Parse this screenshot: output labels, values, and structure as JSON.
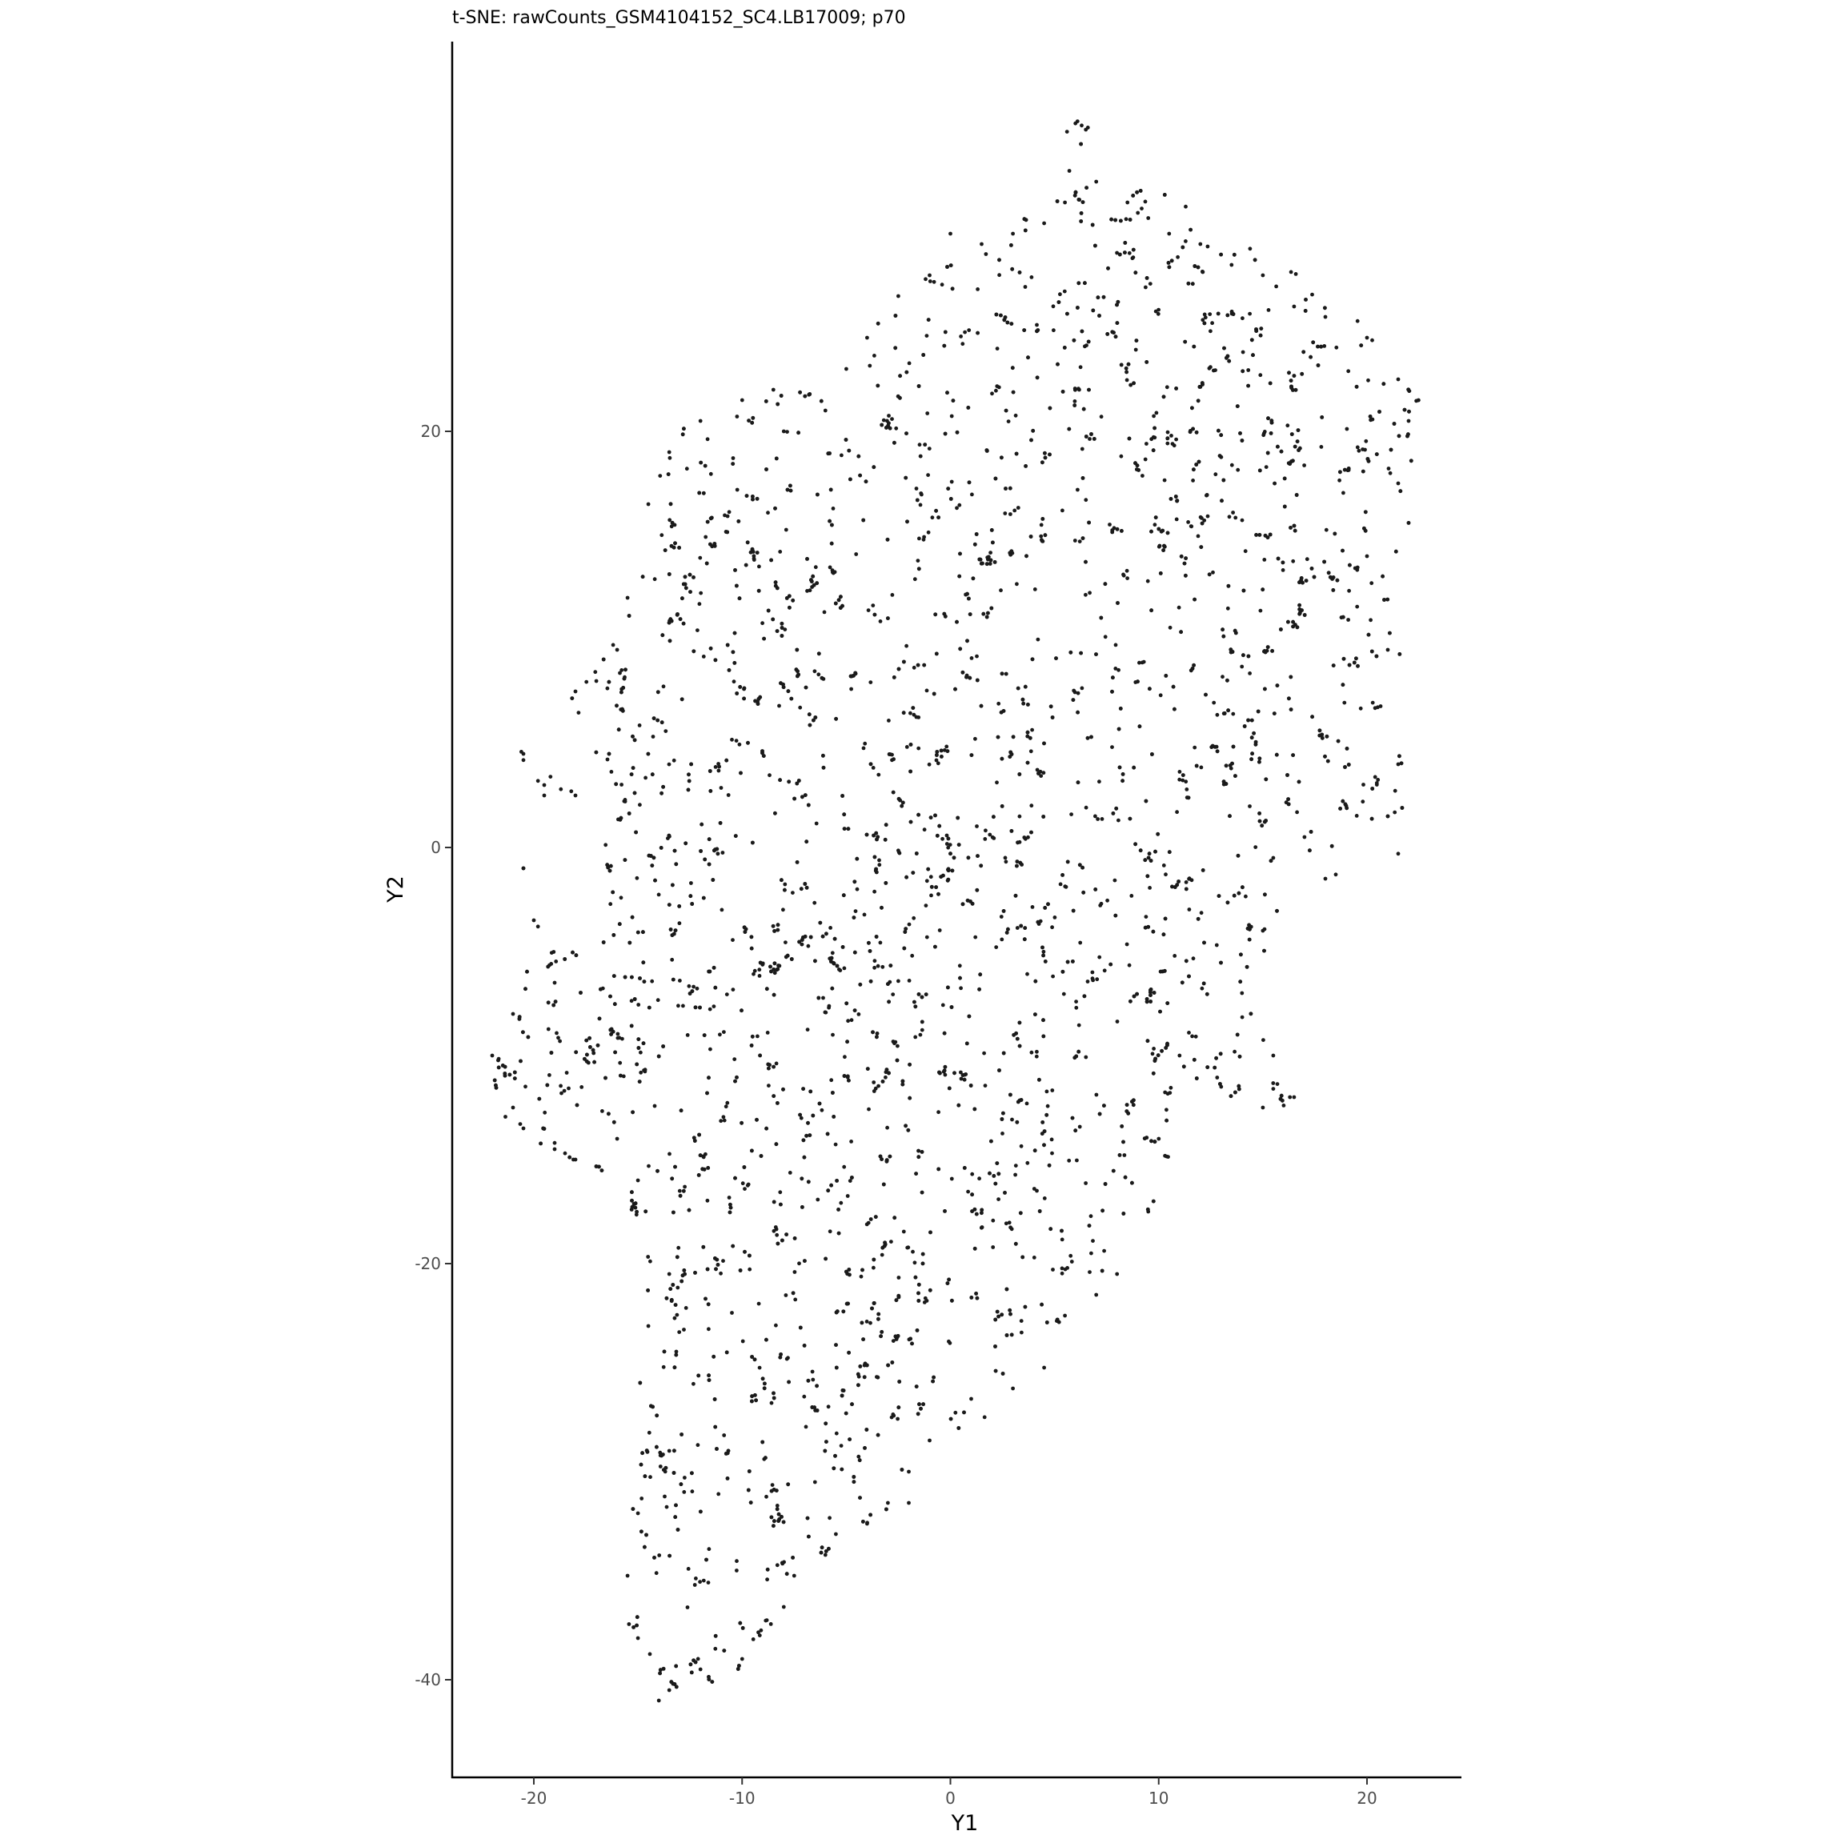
{
  "chart_data": {
    "type": "scatter",
    "title": "t-SNE: rawCounts_GSM4104152_SC4.LB17009; p70",
    "xlabel": "Y1",
    "ylabel": "Y2",
    "xlim": [
      -24.5,
      24.5
    ],
    "ylim": [
      -45,
      39
    ],
    "x_ticks": [
      -20,
      -10,
      0,
      10,
      20
    ],
    "y_ticks": [
      -40,
      -20,
      0,
      20
    ],
    "x_tick_labels": [
      "-20",
      "-10",
      "0",
      "10",
      "20"
    ],
    "y_tick_labels": [
      "-40",
      "-20",
      "0",
      "20"
    ],
    "grid": false,
    "legend": "none",
    "point_color": "#1a1a1a",
    "approx_point_count": 4200,
    "note_outline": "dense point cloud spanning Y1 ≈ -22..22, Y2 ≈ -41..35",
    "point_samples": [
      [
        6.0,
        34.8
      ],
      [
        6.5,
        34.5
      ],
      [
        7.0,
        32.0
      ],
      [
        8.5,
        31.0
      ],
      [
        9.0,
        30.5
      ],
      [
        10.5,
        29.5
      ],
      [
        12.0,
        29.0
      ],
      [
        13.5,
        28.0
      ],
      [
        15.0,
        27.5
      ],
      [
        16.5,
        26.0
      ],
      [
        18.0,
        25.5
      ],
      [
        20.0,
        24.5
      ],
      [
        21.5,
        22.5
      ],
      [
        22.0,
        20.5
      ],
      [
        21.5,
        17.5
      ],
      [
        20.0,
        14.0
      ],
      [
        21.0,
        9.5
      ],
      [
        21.5,
        4.0
      ],
      [
        21.0,
        1.5
      ],
      [
        19.0,
        2.0
      ],
      [
        17.0,
        0.5
      ],
      [
        15.5,
        -0.5
      ],
      [
        18.0,
        -1.5
      ],
      [
        15.0,
        -4.0
      ],
      [
        14.0,
        -7.0
      ],
      [
        15.5,
        -10.0
      ],
      [
        16.5,
        -12.0
      ],
      [
        15.0,
        -12.5
      ],
      [
        13.0,
        -11.5
      ],
      [
        11.0,
        -10.0
      ],
      [
        10.0,
        -14.0
      ],
      [
        9.5,
        -17.5
      ],
      [
        8.0,
        -20.5
      ],
      [
        7.0,
        -21.5
      ],
      [
        5.5,
        -22.5
      ],
      [
        4.5,
        -25.0
      ],
      [
        3.0,
        -26.0
      ],
      [
        1.0,
        -26.5
      ],
      [
        -1.0,
        -28.5
      ],
      [
        -2.0,
        -30.0
      ],
      [
        -3.0,
        -31.5
      ],
      [
        -4.0,
        -32.5
      ],
      [
        -5.5,
        -33.0
      ],
      [
        -6.0,
        -34.0
      ],
      [
        -7.5,
        -35.0
      ],
      [
        -8.0,
        -36.5
      ],
      [
        -10.0,
        -39.0
      ],
      [
        -12.0,
        -39.5
      ],
      [
        -13.5,
        -40.5
      ],
      [
        -14.0,
        -41.0
      ],
      [
        -15.0,
        -38.0
      ],
      [
        -15.5,
        -35.0
      ],
      [
        -15.0,
        -32.0
      ],
      [
        -13.5,
        -29.0
      ],
      [
        -14.5,
        -23.0
      ],
      [
        -13.5,
        -20.5
      ],
      [
        -15.0,
        -16.0
      ],
      [
        -16.0,
        -14.0
      ],
      [
        -18.0,
        -15.0
      ],
      [
        -19.0,
        -14.5
      ],
      [
        -20.5,
        -13.5
      ],
      [
        -21.0,
        -12.5
      ],
      [
        -22.0,
        -10.0
      ],
      [
        -21.0,
        -8.0
      ],
      [
        -19.0,
        -6.5
      ],
      [
        -20.0,
        -3.5
      ],
      [
        -20.5,
        -1.0
      ],
      [
        -20.5,
        4.5
      ],
      [
        -19.5,
        3.0
      ],
      [
        -18.0,
        2.5
      ],
      [
        -18.0,
        7.5
      ],
      [
        -17.0,
        8.0
      ],
      [
        -16.0,
        9.5
      ],
      [
        -15.5,
        12.0
      ],
      [
        -14.5,
        16.5
      ],
      [
        -13.5,
        19.0
      ],
      [
        -12.0,
        20.5
      ],
      [
        -10.0,
        21.5
      ],
      [
        -8.0,
        20.0
      ],
      [
        -6.0,
        21.0
      ],
      [
        -5.0,
        23.0
      ],
      [
        -4.0,
        24.5
      ],
      [
        -2.5,
        26.5
      ],
      [
        -1.0,
        27.5
      ],
      [
        0.0,
        29.5
      ],
      [
        1.5,
        29.0
      ],
      [
        3.0,
        29.5
      ],
      [
        4.5,
        30.0
      ],
      [
        5.5,
        31.0
      ]
    ]
  }
}
